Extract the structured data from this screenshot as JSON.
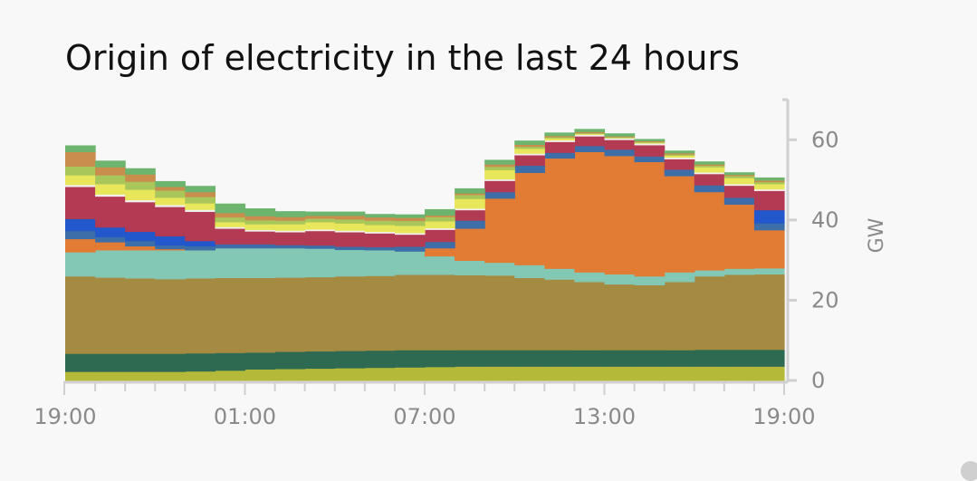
{
  "chart_data": {
    "type": "area",
    "title": "Origin of electricity in the last 24 hours",
    "xlabel": "",
    "ylabel": "GW",
    "ylim": [
      0,
      70
    ],
    "yticks": [
      0,
      20,
      40,
      60
    ],
    "xticks": [
      "19:00",
      "01:00",
      "07:00",
      "13:00",
      "19:00"
    ],
    "x": [
      "19:00",
      "20:00",
      "21:00",
      "22:00",
      "23:00",
      "00:00",
      "01:00",
      "02:00",
      "03:00",
      "04:00",
      "05:00",
      "06:00",
      "07:00",
      "08:00",
      "09:00",
      "10:00",
      "11:00",
      "12:00",
      "13:00",
      "14:00",
      "15:00",
      "16:00",
      "17:00",
      "18:00"
    ],
    "grid": false,
    "legend": "none",
    "series": [
      {
        "color": "#b5b93a",
        "values": [
          2.2,
          2.2,
          2.2,
          2.2,
          2.3,
          2.5,
          2.8,
          2.9,
          3.0,
          3.1,
          3.2,
          3.3,
          3.4,
          3.5,
          3.5,
          3.5,
          3.5,
          3.5,
          3.5,
          3.5,
          3.5,
          3.5,
          3.5,
          3.5
        ]
      },
      {
        "color": "#2e6a52",
        "values": [
          4.5,
          4.5,
          4.5,
          4.5,
          4.5,
          4.4,
          4.2,
          4.3,
          4.3,
          4.3,
          4.3,
          4.3,
          4.2,
          4.1,
          4.1,
          4.1,
          4.1,
          4.1,
          4.1,
          4.1,
          4.1,
          4.2,
          4.2,
          4.2
        ]
      },
      {
        "color": "#a58b42",
        "values": [
          19.3,
          19.0,
          18.8,
          18.6,
          18.7,
          18.7,
          18.6,
          18.5,
          18.5,
          18.6,
          18.6,
          18.8,
          18.8,
          18.7,
          18.6,
          18.0,
          17.6,
          17.0,
          16.4,
          16.2,
          17.0,
          18.3,
          18.7,
          18.8
        ]
      },
      {
        "color": "#83c8b4",
        "values": [
          6.0,
          6.8,
          7.0,
          7.2,
          7.0,
          7.4,
          7.4,
          7.3,
          7.1,
          6.6,
          6.4,
          5.8,
          4.6,
          3.6,
          3.2,
          3.2,
          2.7,
          2.4,
          2.5,
          2.2,
          2.4,
          1.5,
          1.5,
          1.5
        ]
      },
      {
        "color": "#e27b34",
        "values": [
          3.3,
          2.0,
          1.0,
          0.3,
          0,
          0,
          0,
          0,
          0,
          0,
          0,
          0,
          2.0,
          8.0,
          16.0,
          23.0,
          27.5,
          30.0,
          29.5,
          28.5,
          24.0,
          19.5,
          16.0,
          9.5
        ]
      },
      {
        "color": "#3d6ea8",
        "values": [
          2.0,
          1.3,
          1.3,
          0.9,
          1.0,
          1.0,
          1.0,
          0.8,
          0.8,
          0.8,
          0.8,
          1.2,
          1.6,
          2.0,
          1.6,
          1.8,
          1.4,
          1.5,
          1.6,
          1.4,
          1.6,
          1.7,
          1.7,
          1.7
        ]
      },
      {
        "color": "#2357cc",
        "values": [
          3.0,
          2.4,
          2.3,
          2.3,
          1.3,
          0,
          0,
          0,
          0,
          0,
          0,
          0,
          0,
          0,
          0,
          0,
          0,
          0,
          0,
          0,
          0,
          0,
          0,
          3.3
        ]
      },
      {
        "color": "#b23a52",
        "values": [
          8.0,
          7.7,
          7.4,
          7.3,
          7.3,
          3.9,
          3.2,
          3.2,
          3.6,
          3.6,
          3.4,
          3.0,
          3.0,
          2.6,
          2.8,
          2.6,
          2.7,
          2.4,
          2.4,
          2.8,
          2.6,
          2.8,
          3.0,
          4.8
        ]
      },
      {
        "color": "#f2eef0",
        "values": [
          0.5,
          0.5,
          0.5,
          0.5,
          0.5,
          0.4,
          0.4,
          0.4,
          0.4,
          0.4,
          0.4,
          0.4,
          0.4,
          0.4,
          0.4,
          0.4,
          0.4,
          0.4,
          0.4,
          0.4,
          0.4,
          0.4,
          0.4,
          0.4
        ]
      },
      {
        "color": "#e8e65a",
        "values": [
          2.4,
          2.6,
          2.6,
          1.8,
          1.6,
          1.2,
          1.4,
          1.6,
          1.8,
          1.8,
          1.7,
          1.8,
          1.7,
          2.4,
          2.3,
          1.2,
          0.5,
          0.2,
          0.1,
          0.2,
          0.5,
          1.3,
          1.5,
          1.3
        ]
      },
      {
        "color": "#a9c65a",
        "values": [
          2.2,
          2.2,
          2.0,
          1.8,
          1.6,
          1.2,
          1.0,
          0.9,
          0.9,
          1.0,
          1.1,
          1.2,
          1.1,
          1.0,
          0.8,
          0.5,
          0.3,
          0.2,
          0.2,
          0.2,
          0.3,
          0.4,
          0.5,
          0.5
        ]
      },
      {
        "color": "#c98e4e",
        "values": [
          3.6,
          2.0,
          1.8,
          0.9,
          1.2,
          1.1,
          1.0,
          0.9,
          0.7,
          0.9,
          0.8,
          0.8,
          0.4,
          0.4,
          0.6,
          0.5,
          0.3,
          0.3,
          0.2,
          0.2,
          0.3,
          0.3,
          0.3,
          0.4
        ]
      },
      {
        "color": "#6db56e",
        "values": [
          1.6,
          1.6,
          1.5,
          1.4,
          1.5,
          2.3,
          1.9,
          1.4,
          1.0,
          1.0,
          0.8,
          0.8,
          1.5,
          1.2,
          1.1,
          1.0,
          0.8,
          0.7,
          0.7,
          0.5,
          0.6,
          0.7,
          0.6,
          0.7
        ]
      }
    ]
  }
}
